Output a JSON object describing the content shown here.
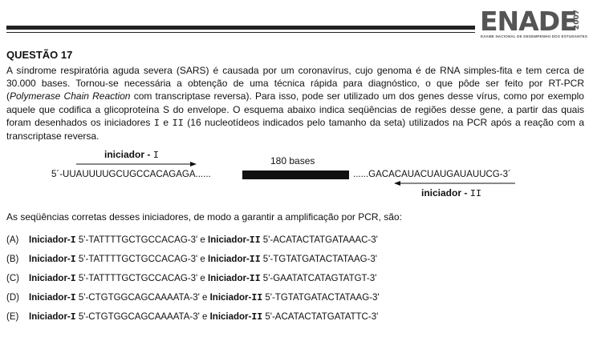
{
  "header": {
    "logo": "ENADE",
    "year": "2007",
    "subtitle": "EXAME NACIONAL DE DESEMPENHO DOS ESTUDANTES"
  },
  "question": {
    "title": "QUESTÃO 17",
    "intro_1": "A síndrome respiratória aguda severa (SARS) é causada por um coronavírus, cujo genoma é de RNA simples-fita e tem cerca de 30.000 bases. Tornou-se necessária a obtenção de uma técnica rápida para diagnóstico, o que pôde ser feito por RT-PCR (",
    "intro_italic": "Polymerase Chain Reaction",
    "intro_2": " com transcriptase reversa). Para isso, pode ser utilizado um dos genes desse vírus, como por exemplo aquele que codifica a glicoproteína S do envelope. O esquema abaixo indica seqüências de regiões desse gene, a partir das quais foram desenhados os iniciadores ",
    "intro_mono_1": "I",
    "intro_3": " e ",
    "intro_mono_2": "II",
    "intro_4": " (16 nucleotídeos indicados pelo tamanho da seta) utilizados na PCR após a reação com a transcriptase reversa.",
    "prompt": "As seqüências corretas desses iniciadores, de modo a garantir a amplificação por PCR, são:"
  },
  "diagram": {
    "primer_i_label": "iniciador - ",
    "primer_i_num": "I",
    "primer_ii_label": "iniciador - ",
    "primer_ii_num": "II",
    "bases_label": "180  bases",
    "seq_left": "5´-UUAUUUUGCUGCCACAGAGA......",
    "seq_right": "......GACACAUACUAUGAUAUUCG-3´"
  },
  "options": [
    {
      "letter": "(A)",
      "label_i": "Iniciador-",
      "num_i": "I",
      "seq_i": " 5'-TATTTTGCTGCCACAG-3'  ",
      "conj": "e",
      "label_ii": "Iniciador-",
      "num_ii": "II",
      "seq_ii": " 5'-ACATACTATGATAAAC-3'"
    },
    {
      "letter": "(B)",
      "label_i": "Iniciador-",
      "num_i": "I",
      "seq_i": " 5'-TATTTTGCTGCCACAG-3'  ",
      "conj": "e",
      "label_ii": "Iniciador-",
      "num_ii": "II",
      "seq_ii": " 5'-TGTATGATACTATAAG-3'"
    },
    {
      "letter": "(C)",
      "label_i": "Iniciador-",
      "num_i": "I",
      "seq_i": " 5'-TATTTTGCTGCCACAG-3'  ",
      "conj": "e",
      "label_ii": "Iniciador-",
      "num_ii": "II",
      "seq_ii": " 5'-GAATATCATAGTATGT-3'"
    },
    {
      "letter": "(D)",
      "label_i": "Iniciador-",
      "num_i": "I",
      "seq_i": " 5'-CTGTGGCAGCAAAATA-3'  ",
      "conj": "e",
      "label_ii": "Iniciador-",
      "num_ii": "II",
      "seq_ii": " 5'-TGTATGATACTATAAG-3'"
    },
    {
      "letter": "(E)",
      "label_i": "Iniciador-",
      "num_i": "I",
      "seq_i": " 5'-CTGTGGCAGCAAAATA-3'  ",
      "conj": "e",
      "label_ii": "Iniciador-",
      "num_ii": "II",
      "seq_ii": " 5'-ACATACTATGATATTC-3'"
    }
  ]
}
